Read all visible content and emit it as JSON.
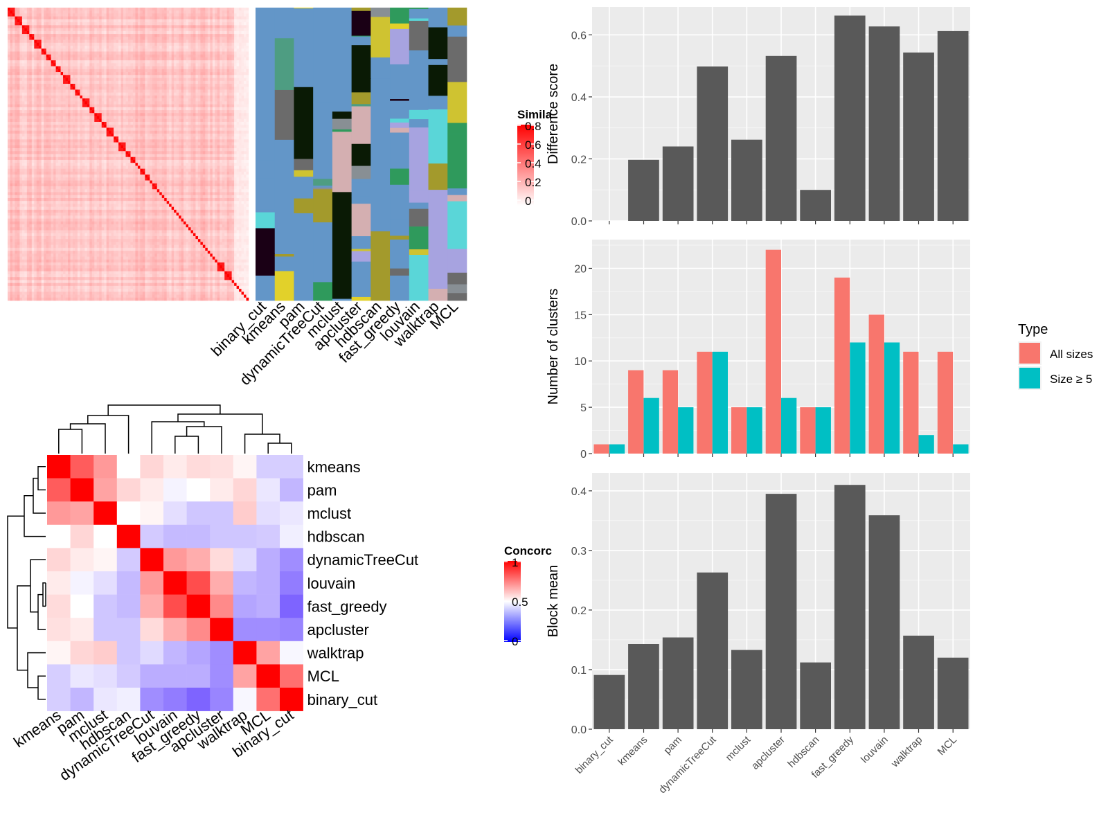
{
  "chart_data": [
    {
      "type": "heatmap",
      "name": "similarity-heatmap",
      "legend": {
        "title": "Simila",
        "ticks": [
          "0.8",
          "0.6",
          "0.4",
          "0.2",
          "0"
        ],
        "placement": "right"
      },
      "column_labels": [
        "binary_cut",
        "kmeans",
        "pam",
        "dynamicTreeCut",
        "mclust",
        "apcluster",
        "hdbscan",
        "fast_greedy",
        "louvain",
        "walktrap",
        "MCL"
      ],
      "colors": {
        "high": "#ff0000",
        "low": "#ffffff",
        "background_cluster": "#6396c8"
      },
      "row_count": 100,
      "diagonal_blocks": [
        3,
        3,
        3,
        2,
        3,
        2,
        2,
        2,
        2,
        1,
        3,
        2,
        2,
        1,
        3,
        2,
        3,
        2,
        3,
        2,
        3,
        2,
        2,
        1,
        1,
        2,
        2,
        1,
        2,
        1,
        1,
        1,
        1,
        1,
        1,
        1,
        1,
        1,
        1,
        1,
        1,
        1,
        1,
        1,
        1,
        1,
        1,
        1,
        1,
        1,
        1,
        1,
        1,
        1,
        3,
        3
      ],
      "palette": [
        "#6396c8",
        "#a39a2c",
        "#6b6b6b",
        "#888f94",
        "#cfc331",
        "#1a0015",
        "#0a1a05",
        "#2f9a5c",
        "#d4afb1",
        "#5ad6d8",
        "#e2d12a",
        "#a7a3e0",
        "#4e9d82"
      ]
    },
    {
      "type": "heatmap",
      "name": "concordance-heatmap",
      "legend": {
        "title": "Concorc",
        "ticks": [
          "1",
          "0.5",
          "0"
        ],
        "placement": "right"
      },
      "row_labels": [
        "kmeans",
        "pam",
        "mclust",
        "hdbscan",
        "dynamicTreeCut",
        "louvain",
        "fast_greedy",
        "apcluster",
        "walktrap",
        "MCL",
        "binary_cut"
      ],
      "column_labels": [
        "kmeans",
        "pam",
        "mclust",
        "hdbscan",
        "dynamicTreeCut",
        "louvain",
        "fast_greedy",
        "apcluster",
        "walktrap",
        "MCL",
        "binary_cut"
      ],
      "values": [
        [
          1.0,
          0.82,
          0.7,
          0.5,
          0.58,
          0.54,
          0.57,
          0.56,
          0.52,
          0.38,
          0.38
        ],
        [
          0.82,
          1.0,
          0.68,
          0.58,
          0.54,
          0.47,
          0.5,
          0.54,
          0.58,
          0.44,
          0.32
        ],
        [
          0.7,
          0.68,
          1.0,
          0.5,
          0.52,
          0.42,
          0.36,
          0.36,
          0.6,
          0.42,
          0.44
        ],
        [
          0.5,
          0.58,
          0.5,
          1.0,
          0.37,
          0.33,
          0.33,
          0.36,
          0.36,
          0.37,
          0.46
        ],
        [
          0.58,
          0.54,
          0.52,
          0.37,
          1.0,
          0.7,
          0.66,
          0.57,
          0.41,
          0.3,
          0.22
        ],
        [
          0.54,
          0.47,
          0.42,
          0.33,
          0.7,
          1.0,
          0.85,
          0.66,
          0.32,
          0.3,
          0.18
        ],
        [
          0.57,
          0.5,
          0.36,
          0.33,
          0.66,
          0.85,
          1.0,
          0.73,
          0.28,
          0.3,
          0.12
        ],
        [
          0.56,
          0.54,
          0.36,
          0.36,
          0.57,
          0.66,
          0.73,
          1.0,
          0.22,
          0.22,
          0.2
        ],
        [
          0.52,
          0.58,
          0.6,
          0.36,
          0.41,
          0.32,
          0.28,
          0.22,
          1.0,
          0.68,
          0.48
        ],
        [
          0.38,
          0.44,
          0.42,
          0.37,
          0.3,
          0.3,
          0.3,
          0.22,
          0.68,
          1.0,
          0.78
        ],
        [
          0.38,
          0.32,
          0.44,
          0.46,
          0.22,
          0.18,
          0.12,
          0.2,
          0.48,
          0.78,
          1.0
        ]
      ],
      "colors": {
        "high": "#ff0000",
        "mid": "#ffffff",
        "low": "#0000ff"
      }
    },
    {
      "type": "bar",
      "name": "difference-score",
      "categories": [
        "binary_cut",
        "kmeans",
        "pam",
        "dynamicTreeCut",
        "mclust",
        "apcluster",
        "hdbscan",
        "fast_greedy",
        "louvain",
        "walktrap",
        "MCL"
      ],
      "values": [
        0.0,
        0.197,
        0.24,
        0.498,
        0.262,
        0.532,
        0.1,
        0.662,
        0.627,
        0.543,
        0.612
      ],
      "ylabel": "Difference score",
      "ylim": [
        0,
        0.69
      ],
      "yticks": [
        "0.0",
        "0.2",
        "0.4",
        "0.6"
      ],
      "grid": true,
      "color": "#595959"
    },
    {
      "type": "bar",
      "name": "number-of-clusters",
      "categories": [
        "binary_cut",
        "kmeans",
        "pam",
        "dynamicTreeCut",
        "mclust",
        "apcluster",
        "hdbscan",
        "fast_greedy",
        "louvain",
        "walktrap",
        "MCL"
      ],
      "series": [
        {
          "name": "All sizes",
          "values": [
            1,
            9,
            9,
            11,
            5,
            22,
            5,
            19,
            15,
            11,
            11
          ],
          "color": "#f8766d"
        },
        {
          "name": "Size ≥ 5",
          "values": [
            1,
            6,
            5,
            11,
            5,
            6,
            5,
            12,
            12,
            2,
            1
          ],
          "color": "#00bfc4"
        }
      ],
      "ylabel": "Number of clusters",
      "ylim": [
        0,
        23.1
      ],
      "yticks": [
        "0",
        "5",
        "10",
        "15",
        "20"
      ],
      "grid": true,
      "legend": {
        "title": "Type",
        "placement": "right"
      }
    },
    {
      "type": "bar",
      "name": "block-mean",
      "categories": [
        "binary_cut",
        "kmeans",
        "pam",
        "dynamicTreeCut",
        "mclust",
        "apcluster",
        "hdbscan",
        "fast_greedy",
        "louvain",
        "walktrap",
        "MCL"
      ],
      "values": [
        0.091,
        0.143,
        0.154,
        0.263,
        0.133,
        0.395,
        0.112,
        0.41,
        0.359,
        0.157,
        0.12
      ],
      "ylabel": "Block mean",
      "ylim": [
        0,
        0.43
      ],
      "yticks": [
        "0.0",
        "0.1",
        "0.2",
        "0.3",
        "0.4"
      ],
      "grid": true,
      "color": "#595959"
    }
  ]
}
